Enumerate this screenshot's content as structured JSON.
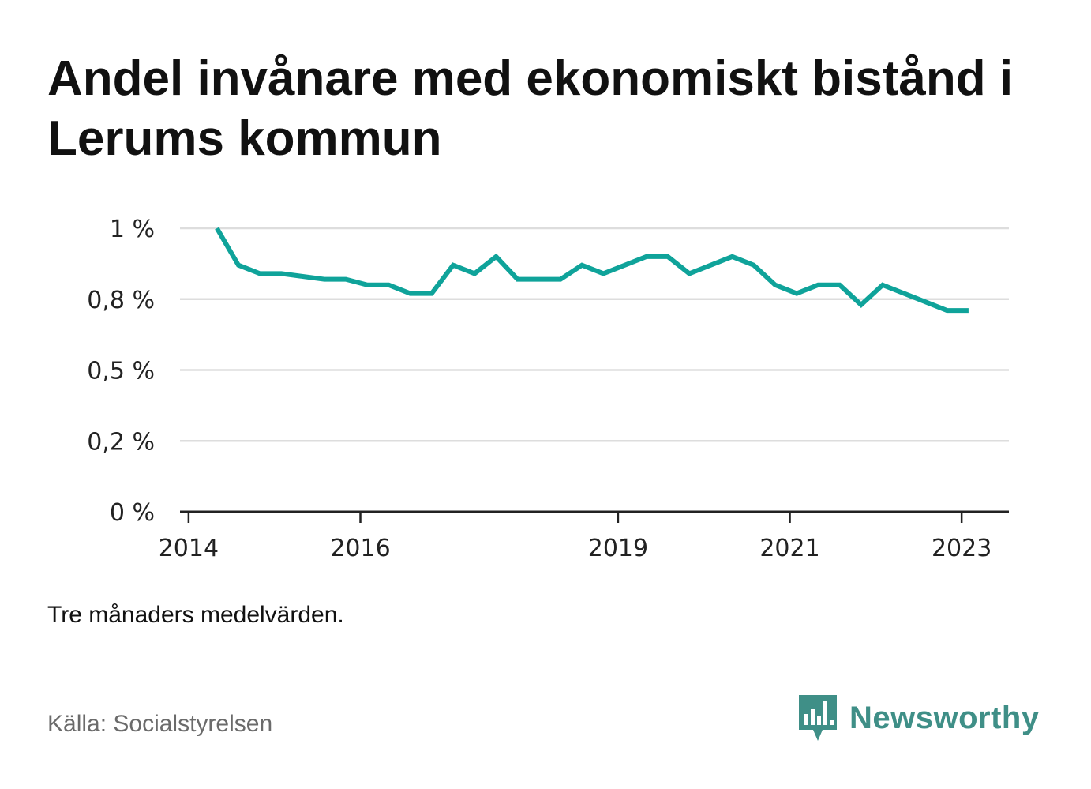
{
  "title": "Andel invånare med ekonomiskt bistånd i Lerums kommun",
  "note": "Tre månaders medelvärden.",
  "source": "Källa: Socialstyrelsen",
  "brand": {
    "name": "Newsworthy",
    "icon": "newsworthy-logo-icon",
    "color": "#3f8f87"
  },
  "colors": {
    "line": "#0fa39a",
    "grid": "#dddddd",
    "axis": "#222222"
  },
  "chart_data": {
    "type": "line",
    "title": "Andel invånare med ekonomiskt bistånd i Lerums kommun",
    "xlabel": "",
    "ylabel": "",
    "y_ticks": [
      {
        "value": 0,
        "label": "0 %"
      },
      {
        "value": 0.25,
        "label": "0,2 %"
      },
      {
        "value": 0.5,
        "label": "0,5 %"
      },
      {
        "value": 0.75,
        "label": "0,8 %"
      },
      {
        "value": 1.0,
        "label": "1 %"
      }
    ],
    "x_ticks": [
      {
        "value": 2014.0,
        "label": "2014"
      },
      {
        "value": 2016.0,
        "label": "2016"
      },
      {
        "value": 2019.0,
        "label": "2019"
      },
      {
        "value": 2021.0,
        "label": "2021"
      },
      {
        "value": 2023.0,
        "label": "2023"
      }
    ],
    "xlim": [
      2013.9,
      2023.55
    ],
    "ylim": [
      0,
      1.0
    ],
    "grid": true,
    "series": [
      {
        "values": [
          {
            "x": 2014.33,
            "y": 1.0
          },
          {
            "x": 2014.58,
            "y": 0.87
          },
          {
            "x": 2014.83,
            "y": 0.84
          },
          {
            "x": 2015.08,
            "y": 0.84
          },
          {
            "x": 2015.33,
            "y": 0.83
          },
          {
            "x": 2015.58,
            "y": 0.82
          },
          {
            "x": 2015.83,
            "y": 0.82
          },
          {
            "x": 2016.08,
            "y": 0.8
          },
          {
            "x": 2016.33,
            "y": 0.8
          },
          {
            "x": 2016.58,
            "y": 0.77
          },
          {
            "x": 2016.83,
            "y": 0.77
          },
          {
            "x": 2017.08,
            "y": 0.87
          },
          {
            "x": 2017.33,
            "y": 0.84
          },
          {
            "x": 2017.58,
            "y": 0.9
          },
          {
            "x": 2017.83,
            "y": 0.82
          },
          {
            "x": 2018.08,
            "y": 0.82
          },
          {
            "x": 2018.33,
            "y": 0.82
          },
          {
            "x": 2018.58,
            "y": 0.87
          },
          {
            "x": 2018.83,
            "y": 0.84
          },
          {
            "x": 2019.08,
            "y": 0.87
          },
          {
            "x": 2019.33,
            "y": 0.9
          },
          {
            "x": 2019.58,
            "y": 0.9
          },
          {
            "x": 2019.83,
            "y": 0.84
          },
          {
            "x": 2020.08,
            "y": 0.87
          },
          {
            "x": 2020.33,
            "y": 0.9
          },
          {
            "x": 2020.58,
            "y": 0.87
          },
          {
            "x": 2020.83,
            "y": 0.8
          },
          {
            "x": 2021.08,
            "y": 0.77
          },
          {
            "x": 2021.33,
            "y": 0.8
          },
          {
            "x": 2021.58,
            "y": 0.8
          },
          {
            "x": 2021.83,
            "y": 0.73
          },
          {
            "x": 2022.08,
            "y": 0.8
          },
          {
            "x": 2022.33,
            "y": 0.77
          },
          {
            "x": 2022.58,
            "y": 0.74
          },
          {
            "x": 2022.83,
            "y": 0.71
          },
          {
            "x": 2023.08,
            "y": 0.71
          }
        ]
      }
    ]
  }
}
